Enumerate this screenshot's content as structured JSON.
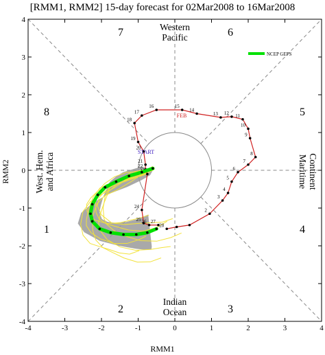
{
  "chart_data": {
    "type": "line",
    "title": "[RMM1, RMM2] 15-day forecast for 02Mar2008 to 16Mar2008",
    "xlabel": "RMM1",
    "ylabel": "RMM2",
    "xlim": [
      -4,
      4
    ],
    "ylim": [
      -4,
      4
    ],
    "xticks": [
      "-4",
      "-3",
      "-2",
      "-1",
      "0",
      "1",
      "2",
      "3",
      "4"
    ],
    "yticks": [
      "-4",
      "-3",
      "-2",
      "-1",
      "0",
      "1",
      "2",
      "3",
      "4"
    ],
    "phases": [
      "1",
      "2",
      "3",
      "4",
      "5",
      "6",
      "7",
      "8"
    ],
    "regions": {
      "top": [
        "Western",
        "Pacific"
      ],
      "right": [
        "Maritime",
        "Continent"
      ],
      "bottom": [
        "Indian",
        "Ocean"
      ],
      "left": [
        "West. Hem.",
        "and Africa"
      ]
    },
    "month_label": "FEB",
    "start_label": "START",
    "legend": {
      "label": "NCEP GEFS",
      "color": "#00e000",
      "placement": "top-right"
    },
    "observed": {
      "color": "#d02020",
      "points": [
        [
          -0.22,
          -1.55,
          "28"
        ],
        [
          0.05,
          -1.5,
          ""
        ],
        [
          0.4,
          -1.45,
          ""
        ],
        [
          0.95,
          -1.15,
          "2"
        ],
        [
          1.3,
          -0.8,
          "3"
        ],
        [
          1.45,
          -0.6,
          "4"
        ],
        [
          1.55,
          -0.3,
          "5"
        ],
        [
          1.72,
          -0.05,
          "6"
        ],
        [
          2.0,
          0.15,
          "7"
        ],
        [
          2.2,
          0.35,
          "8"
        ],
        [
          2.05,
          0.85,
          "9"
        ],
        [
          2.0,
          1.1,
          "10"
        ],
        [
          1.85,
          1.35,
          "11"
        ],
        [
          1.55,
          1.42,
          "12"
        ],
        [
          1.25,
          1.4,
          "13"
        ],
        [
          0.6,
          1.5,
          "14"
        ],
        [
          0.2,
          1.6,
          "15"
        ],
        [
          -0.5,
          1.6,
          "16"
        ],
        [
          -0.9,
          1.45,
          "17"
        ],
        [
          -1.1,
          1.25,
          "18"
        ],
        [
          -1.0,
          0.75,
          "19"
        ],
        [
          -0.85,
          0.5,
          "20"
        ],
        [
          -0.8,
          0.15,
          "21"
        ],
        [
          -0.8,
          0.02,
          "22"
        ],
        [
          -0.75,
          -0.1,
          "23"
        ],
        [
          -0.9,
          -1.05,
          "24"
        ],
        [
          -0.85,
          -1.4,
          "25"
        ],
        [
          -0.7,
          -1.45,
          "26"
        ],
        [
          -0.45,
          -1.45,
          "27"
        ]
      ]
    },
    "forecast_mean": {
      "color": "#00e000",
      "points": [
        [
          -0.6,
          0.05
        ],
        [
          -0.9,
          -0.05
        ],
        [
          -1.25,
          -0.15
        ],
        [
          -1.6,
          -0.3
        ],
        [
          -1.9,
          -0.45
        ],
        [
          -2.1,
          -0.65
        ],
        [
          -2.25,
          -0.9
        ],
        [
          -2.3,
          -1.15
        ],
        [
          -2.25,
          -1.35
        ],
        [
          -2.05,
          -1.55
        ],
        [
          -1.75,
          -1.65
        ],
        [
          -1.4,
          -1.7
        ],
        [
          -1.05,
          -1.7
        ],
        [
          -0.75,
          -1.65
        ],
        [
          -0.5,
          -1.55
        ]
      ]
    }
  }
}
